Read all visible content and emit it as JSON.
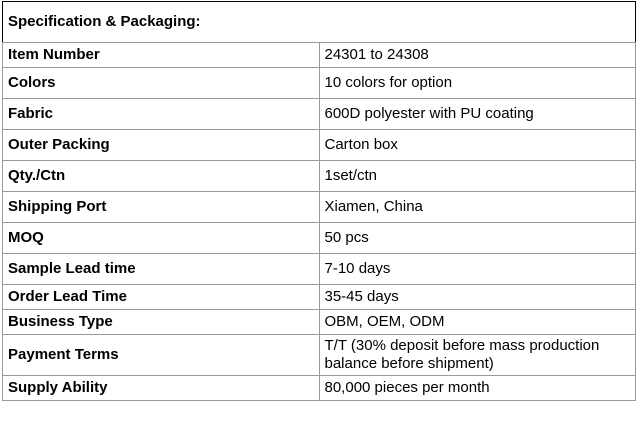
{
  "title": "Specification & Packaging:",
  "rows": [
    {
      "label": "Item Number",
      "value": "24301 to 24308"
    },
    {
      "label": "Colors",
      "value": "10 colors for option"
    },
    {
      "label": "Fabric",
      "value": "600D polyester with PU coating"
    },
    {
      "label": "Outer Packing",
      "value": "Carton box"
    },
    {
      "label": "Qty./Ctn",
      "value": "1set/ctn"
    },
    {
      "label": "Shipping Port",
      "value": "Xiamen, China"
    },
    {
      "label": "MOQ",
      "value": "50 pcs"
    },
    {
      "label": "Sample Lead time",
      "value": "7-10 days"
    },
    {
      "label": "Order Lead Time",
      "value": "35-45 days"
    },
    {
      "label": "Business Type",
      "value": "OBM, OEM, ODM"
    },
    {
      "label": "Payment Terms",
      "value": "T/T (30% deposit before mass production balance before shipment)"
    },
    {
      "label": "Supply Ability",
      "value": "80,000 pieces per month"
    }
  ]
}
